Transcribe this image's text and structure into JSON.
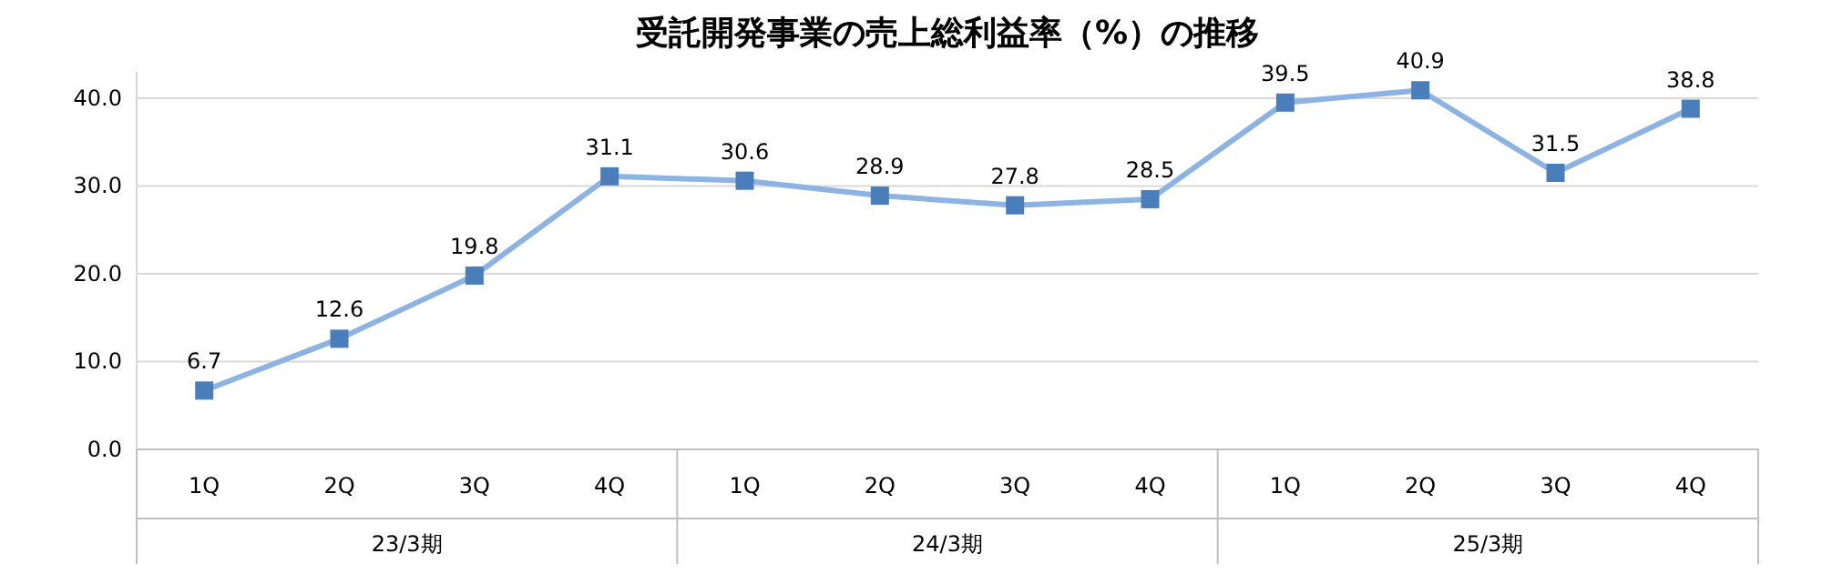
{
  "chart_data": {
    "type": "line",
    "title": "受託開発事業の売上総利益率（%）の推移",
    "categories": [
      "1Q",
      "2Q",
      "3Q",
      "4Q",
      "1Q",
      "2Q",
      "3Q",
      "4Q",
      "1Q",
      "2Q",
      "3Q",
      "4Q"
    ],
    "annotations": [
      "23/3期",
      "24/3期",
      "25/3期"
    ],
    "series": [
      {
        "color": "#8db3e2",
        "colors": [
          "#4a7ebb",
          "#4a7ebb",
          "#4a7ebb",
          "#4a7ebb",
          "#4a7ebb",
          "#4a7ebb",
          "#4a7ebb",
          "#4a7ebb",
          "#4a7ebb",
          "#4a7ebb",
          "#4a7ebb",
          "#4a7ebb"
        ],
        "values": [
          6.7,
          12.6,
          19.8,
          31.1,
          30.6,
          28.9,
          27.8,
          28.5,
          39.5,
          40.9,
          31.5,
          38.8
        ]
      }
    ],
    "ylim": [
      0,
      43
    ],
    "yticks": [
      {
        "value": 0,
        "label": "0.0"
      },
      {
        "value": 10,
        "label": "10.0"
      },
      {
        "value": 20,
        "label": "20.0"
      },
      {
        "value": 30,
        "label": "30.0"
      },
      {
        "value": 40,
        "label": "40.0"
      }
    ],
    "grid": "y",
    "marker": "square",
    "line_style": "solid",
    "data_labels": true
  }
}
